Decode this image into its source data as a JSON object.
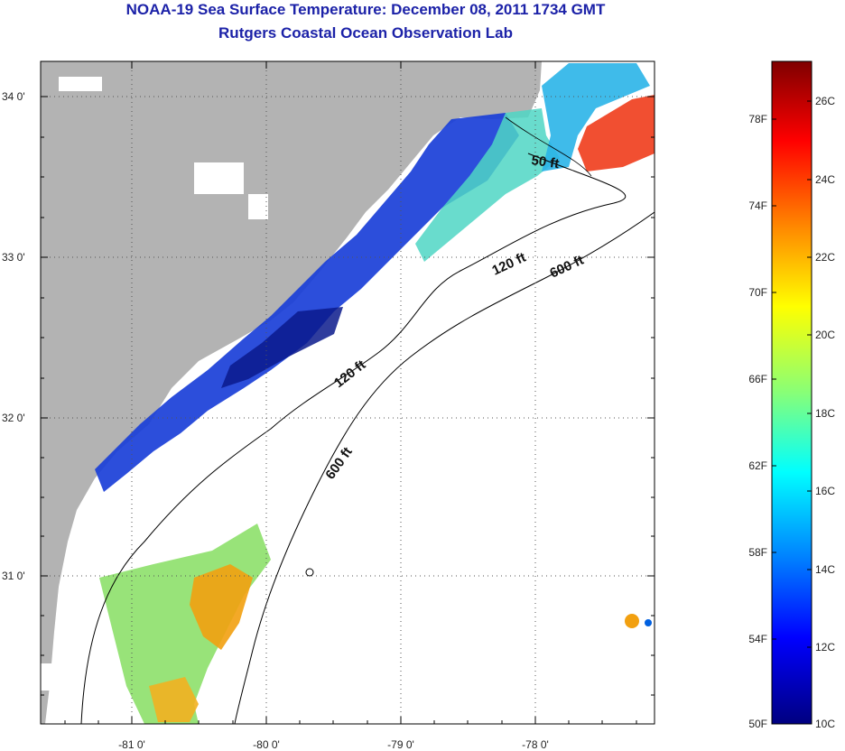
{
  "header": {
    "title": "NOAA-19 Sea Surface Temperature:  December 08, 2011 1734 GMT",
    "subtitle": "Rutgers Coastal Ocean Observation Lab"
  },
  "map": {
    "lat_labels": [
      "34 0'",
      "33 0'",
      "32 0'",
      "31 0'"
    ],
    "lon_labels": [
      "-81 0'",
      "-80 0'",
      "-79 0'",
      "-78 0'"
    ],
    "contours": [
      {
        "label": "50 ft"
      },
      {
        "label": "120 ft"
      },
      {
        "label": "600 ft"
      },
      {
        "label": "120 ft"
      },
      {
        "label": "600 ft"
      }
    ],
    "colors": {
      "land": "#b3b3b3",
      "ocean_nodata": "#ffffff",
      "title": "#1c22a8"
    }
  },
  "colorbar": {
    "fahrenheit_labels": [
      "78F",
      "74F",
      "70F",
      "66F",
      "62F",
      "58F",
      "54F",
      "50F"
    ],
    "celsius_labels": [
      "26C",
      "24C",
      "22C",
      "20C",
      "18C",
      "16C",
      "14C",
      "12C",
      "10C"
    ],
    "colors_top_to_bottom": [
      "#7f0000",
      "#ff0000",
      "#ff8800",
      "#ffff00",
      "#88ff77",
      "#00ffff",
      "#0080ff",
      "#0000ff",
      "#000080"
    ]
  }
}
